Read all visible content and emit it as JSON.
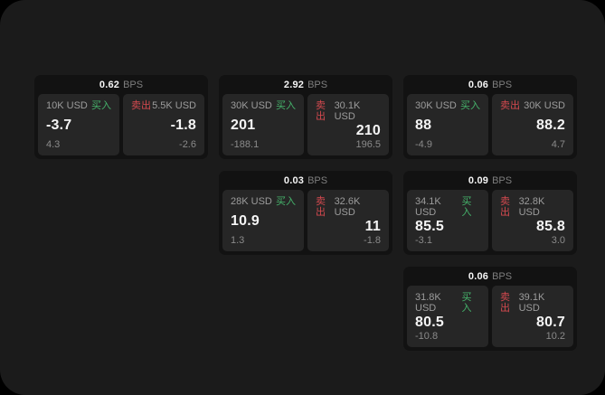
{
  "colors": {
    "background": "#000000",
    "panel": "#1b1b1b",
    "card": "#121212",
    "tile": "#262626",
    "buy": "#45b36b",
    "sell": "#d4494f",
    "value_text": "#f5f5f5",
    "muted_text": "#9c9c9c"
  },
  "labels": {
    "bps": "BPS",
    "buy": "买入",
    "sell": "卖出"
  },
  "cards": [
    {
      "bps": "0.62",
      "buy": {
        "amount": "10K USD",
        "value": "-3.7",
        "sub": "4.3"
      },
      "sell": {
        "amount": "5.5K USD",
        "value": "-1.8",
        "sub": "-2.6"
      }
    },
    {
      "bps": "2.92",
      "buy": {
        "amount": "30K USD",
        "value": "201",
        "sub": "-188.1"
      },
      "sell": {
        "amount": "30.1K USD",
        "value": "210",
        "sub": "196.5"
      }
    },
    {
      "bps": "0.06",
      "buy": {
        "amount": "30K USD",
        "value": "88",
        "sub": "-4.9"
      },
      "sell": {
        "amount": "30K USD",
        "value": "88.2",
        "sub": "4.7"
      }
    },
    {
      "bps": "0.03",
      "buy": {
        "amount": "28K USD",
        "value": "10.9",
        "sub": "1.3"
      },
      "sell": {
        "amount": "32.6K USD",
        "value": "11",
        "sub": "-1.8"
      }
    },
    {
      "bps": "0.09",
      "buy": {
        "amount": "34.1K USD",
        "value": "85.5",
        "sub": "-3.1"
      },
      "sell": {
        "amount": "32.8K USD",
        "value": "85.8",
        "sub": "3.0"
      }
    },
    {
      "bps": "0.06",
      "buy": {
        "amount": "31.8K USD",
        "value": "80.5",
        "sub": "-10.8"
      },
      "sell": {
        "amount": "39.1K USD",
        "value": "80.7",
        "sub": "10.2"
      }
    }
  ]
}
